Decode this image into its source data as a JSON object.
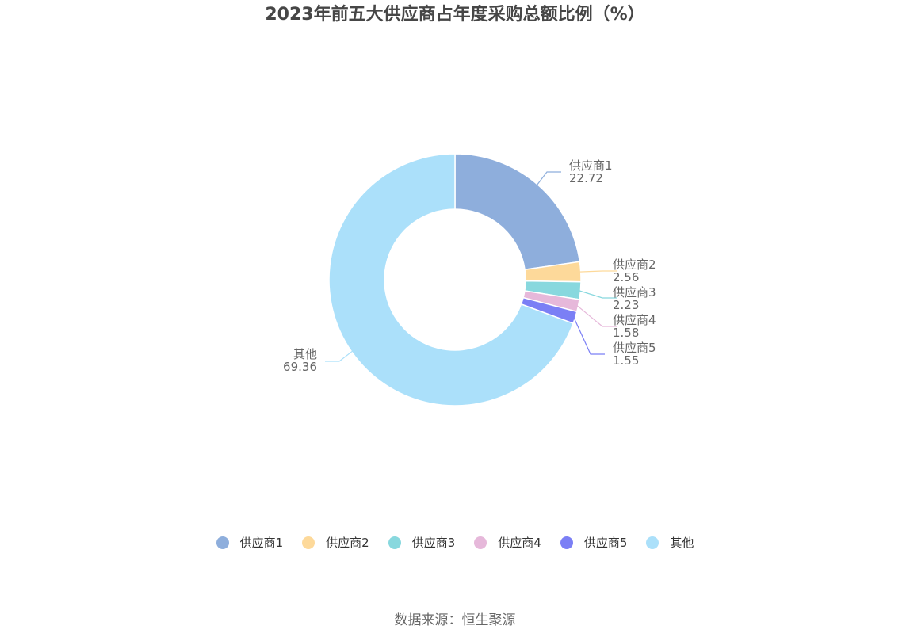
{
  "chart_data": {
    "type": "pie",
    "title": "2023年前五大供应商占年度采购总额比例（%）",
    "slices": [
      {
        "name": "供应商1",
        "value": 22.72,
        "value_label": "22.72",
        "color": "#8eaedc"
      },
      {
        "name": "供应商2",
        "value": 2.56,
        "value_label": "2.56",
        "color": "#fdd99a"
      },
      {
        "name": "供应商3",
        "value": 2.23,
        "value_label": "2.23",
        "color": "#88d8de"
      },
      {
        "name": "供应商4",
        "value": 1.58,
        "value_label": "1.58",
        "color": "#e6b8da"
      },
      {
        "name": "供应商5",
        "value": 1.55,
        "value_label": "1.55",
        "color": "#7b7ff5"
      },
      {
        "name": "其他",
        "value": 69.36,
        "value_label": "69.36",
        "color": "#abe0fa"
      }
    ],
    "legend_position": "bottom",
    "donut": true
  },
  "footer": {
    "source": "数据来源：恒生聚源"
  }
}
